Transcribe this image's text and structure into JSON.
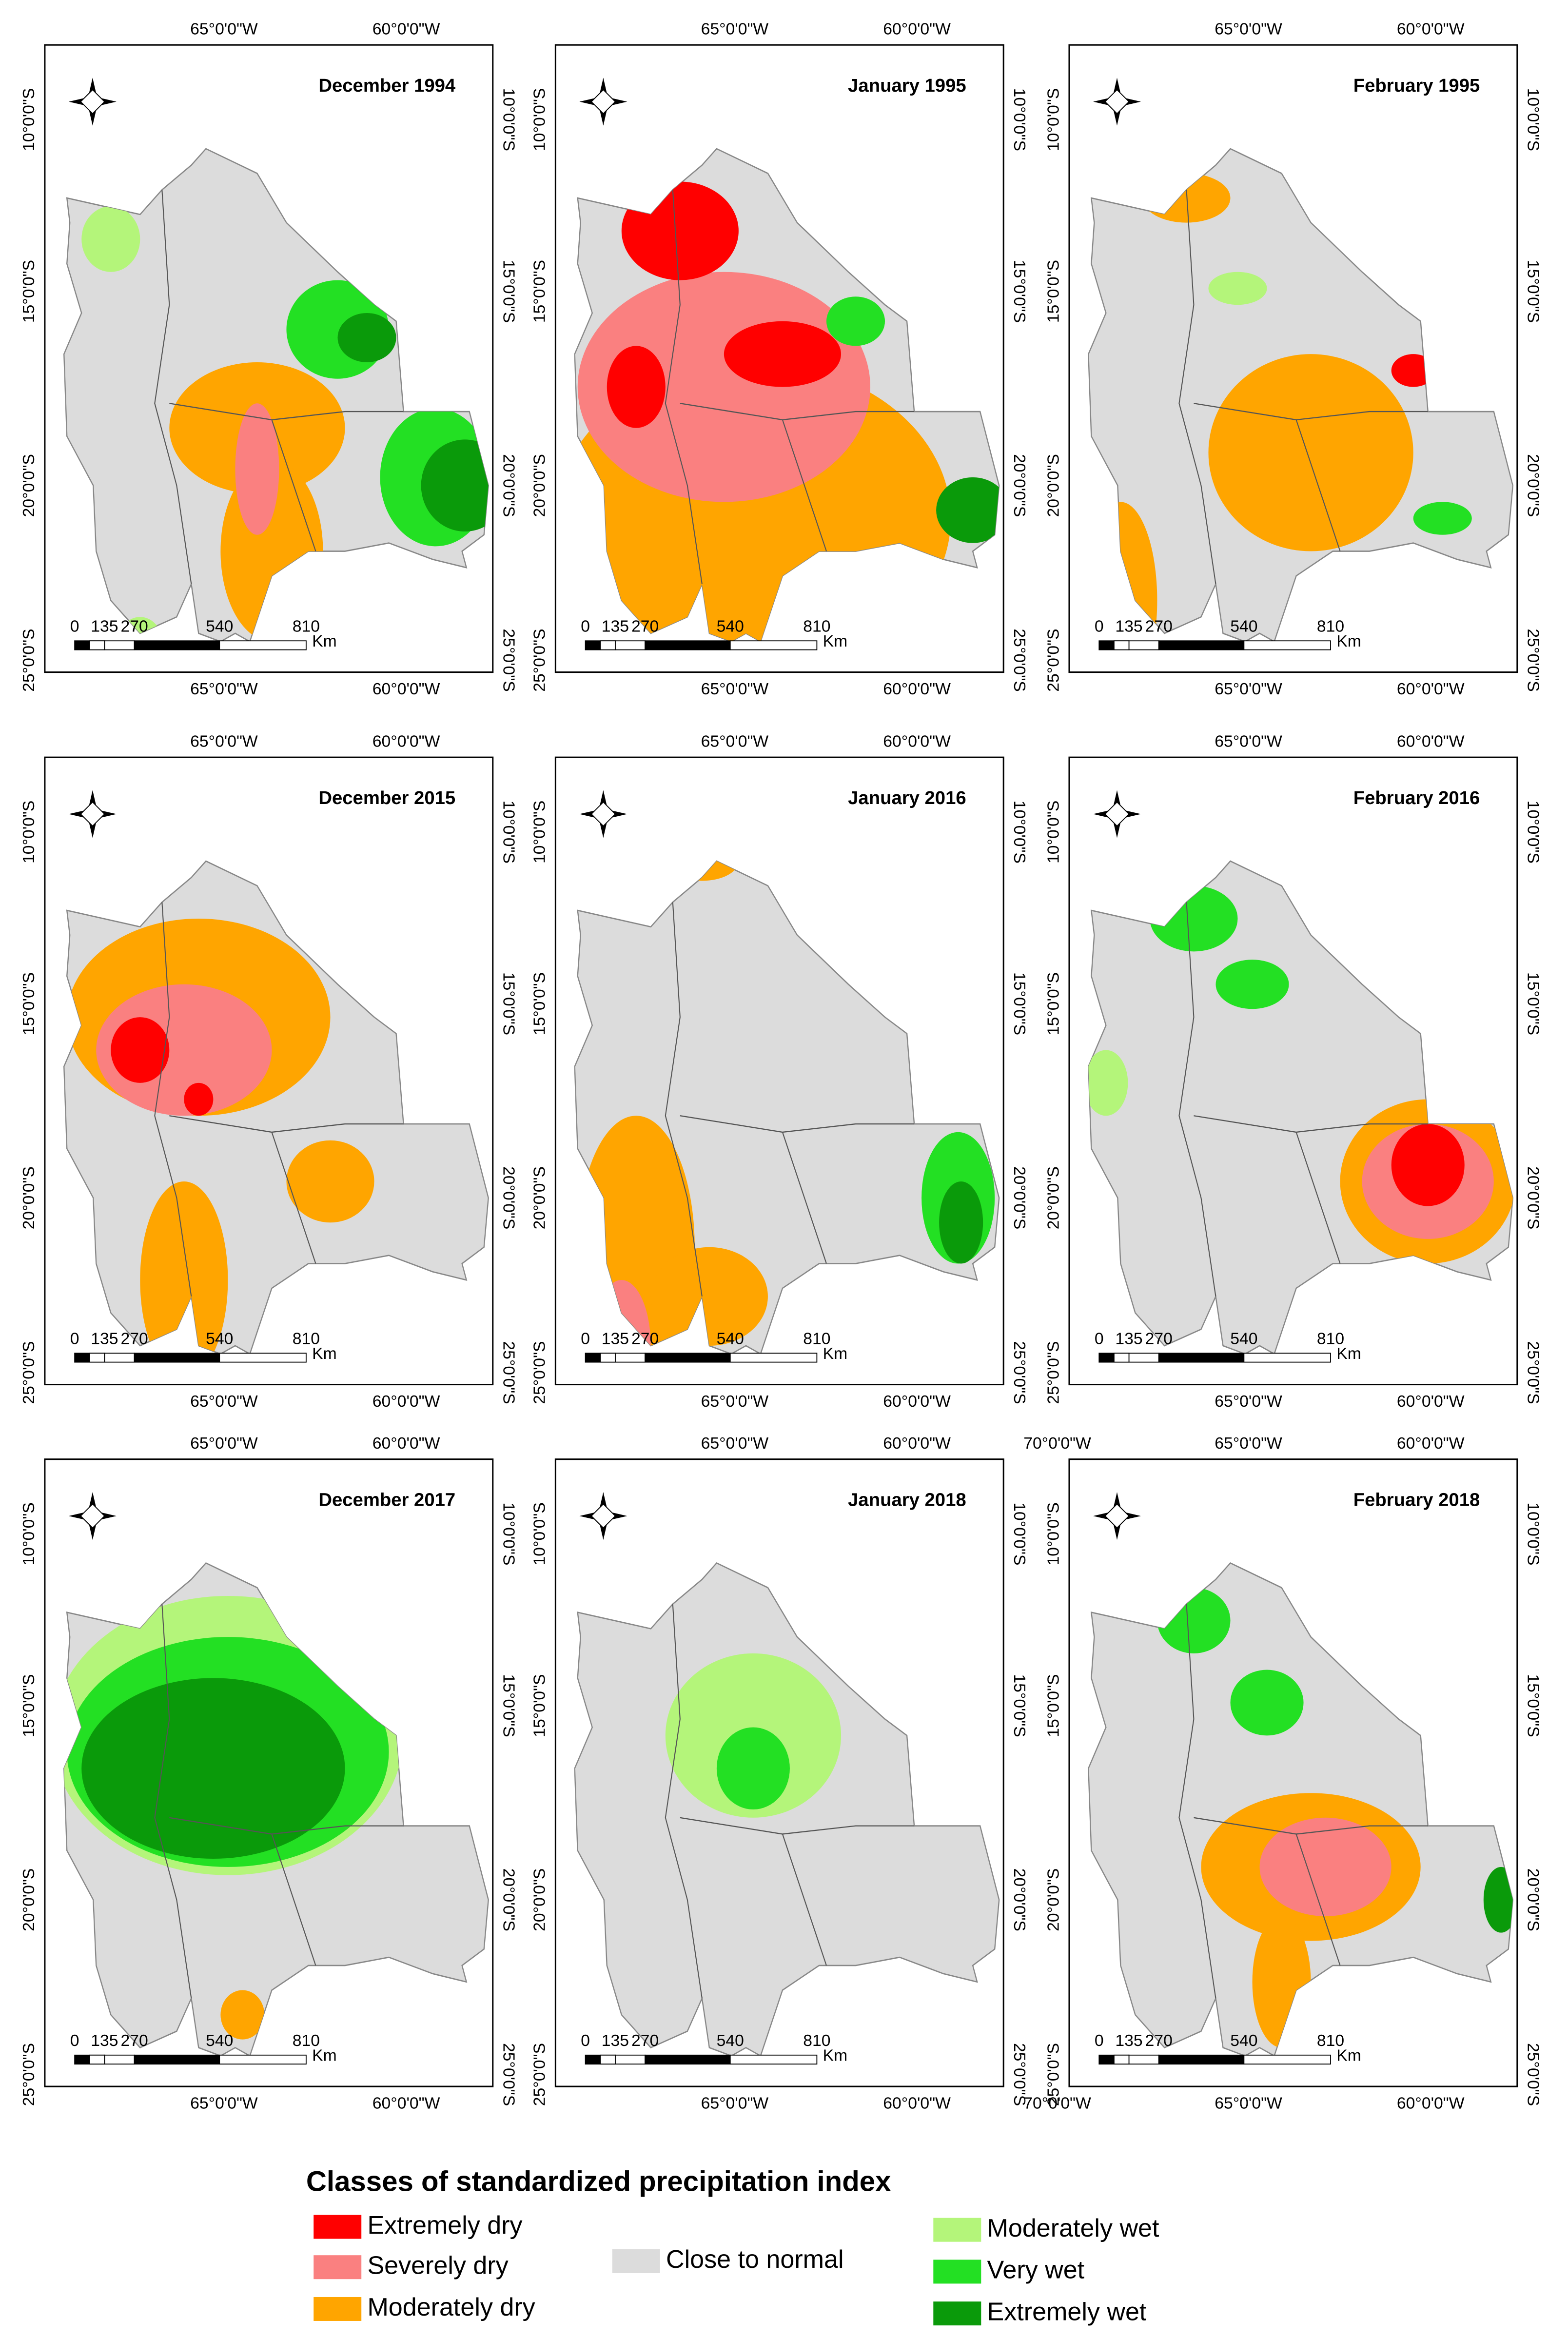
{
  "panels": [
    {
      "title": "December 1994",
      "top": [
        "65°0'0\"W",
        "60°0'0\"W"
      ],
      "bottom": [
        "65°0'0\"W",
        "60°0'0\"W"
      ],
      "left": [
        "10°0'0\"S",
        "15°0'0\"S",
        "20°0'0\"S",
        "25°0'0\"S"
      ],
      "right": [
        "10°0'0\"S",
        "15°0'0\"S",
        "20°0'0\"S",
        "25°0'0\"S"
      ],
      "scale": [
        "0",
        "135",
        "270",
        "540",
        "810"
      ],
      "unit": "Km"
    },
    {
      "title": "January 1995",
      "top": [
        "65°0'0\"W",
        "60°0'0\"W"
      ],
      "bottom": [
        "65°0'0\"W",
        "60°0'0\"W"
      ],
      "left": [
        "10°0'0\"S",
        "15°0'0\"S",
        "20°0'0\"S",
        "25°0'0\"S"
      ],
      "right": [
        "10°0'0\"S",
        "15°0'0\"S",
        "20°0'0\"S",
        "25°0'0\"S"
      ],
      "scale": [
        "0",
        "135",
        "270",
        "540",
        "810"
      ],
      "unit": "Km"
    },
    {
      "title": "February 1995",
      "top": [
        "65°0'0\"W",
        "60°0'0\"W"
      ],
      "bottom": [
        "65°0'0\"W",
        "60°0'0\"W"
      ],
      "left": [
        "10°0'0\"S",
        "15°0'0\"S",
        "20°0'0\"S",
        "25°0'0\"S"
      ],
      "right": [
        "10°0'0\"S",
        "15°0'0\"S",
        "20°0'0\"S",
        "25°0'0\"S"
      ],
      "scale": [
        "0",
        "135",
        "270",
        "540",
        "810"
      ],
      "unit": "Km"
    },
    {
      "title": "December 2015",
      "top": [
        "65°0'0\"W",
        "60°0'0\"W"
      ],
      "bottom": [
        "65°0'0\"W",
        "60°0'0\"W"
      ],
      "left": [
        "10°0'0\"S",
        "15°0'0\"S",
        "20°0'0\"S",
        "25°0'0\"S"
      ],
      "right": [
        "10°0'0\"S",
        "15°0'0\"S",
        "20°0'0\"S",
        "25°0'0\"S"
      ],
      "scale": [
        "0",
        "135",
        "270",
        "540",
        "810"
      ],
      "unit": "Km"
    },
    {
      "title": "January 2016",
      "top": [
        "65°0'0\"W",
        "60°0'0\"W"
      ],
      "bottom": [
        "65°0'0\"W",
        "60°0'0\"W"
      ],
      "left": [
        "10°0'0\"S",
        "15°0'0\"S",
        "20°0'0\"S",
        "25°0'0\"S"
      ],
      "right": [
        "10°0'0\"S",
        "15°0'0\"S",
        "20°0'0\"S",
        "25°0'0\"S"
      ],
      "scale": [
        "0",
        "135",
        "270",
        "540",
        "810"
      ],
      "unit": "Km"
    },
    {
      "title": "February 2016",
      "top": [
        "65°0'0\"W",
        "60°0'0\"W"
      ],
      "bottom": [
        "65°0'0\"W",
        "60°0'0\"W"
      ],
      "left": [
        "10°0'0\"S",
        "15°0'0\"S",
        "20°0'0\"S",
        "25°0'0\"S"
      ],
      "right": [
        "10°0'0\"S",
        "15°0'0\"S",
        "20°0'0\"S",
        "25°0'0\"S"
      ],
      "scale": [
        "0",
        "135",
        "270",
        "540",
        "810"
      ],
      "unit": "Km"
    },
    {
      "title": "December 2017",
      "top": [
        "65°0'0\"W",
        "60°0'0\"W"
      ],
      "bottom": [
        "65°0'0\"W",
        "60°0'0\"W"
      ],
      "left": [
        "10°0'0\"S",
        "15°0'0\"S",
        "20°0'0\"S",
        "25°0'0\"S"
      ],
      "right": [
        "10°0'0\"S",
        "15°0'0\"S",
        "20°0'0\"S",
        "25°0'0\"S"
      ],
      "scale": [
        "0",
        "135",
        "270",
        "540",
        "810"
      ],
      "unit": "Km"
    },
    {
      "title": "January 2018",
      "top": [
        "65°0'0\"W",
        "60°0'0\"W"
      ],
      "bottom": [
        "65°0'0\"W",
        "60°0'0\"W"
      ],
      "left": [
        "10°0'0\"S",
        "15°0'0\"S",
        "20°0'0\"S",
        "25°0'0\"S"
      ],
      "right": [
        "10°0'0\"S",
        "15°0'0\"S",
        "20°0'0\"S",
        "25°0'0\"S"
      ],
      "scale": [
        "0",
        "135",
        "270",
        "540",
        "810"
      ],
      "unit": "Km"
    },
    {
      "title": "February 2018",
      "top": [
        "70°0'0\"W",
        "65°0'0\"W",
        "60°0'0\"W"
      ],
      "bottom": [
        "70°0'0\"W",
        "65°0'0\"W",
        "60°0'0\"W"
      ],
      "left": [
        "10°0'0\"S",
        "15°0'0\"S",
        "20°0'0\"S",
        "25°0'0\"S"
      ],
      "right": [
        "10°0'0\"S",
        "15°0'0\"S",
        "20°0'0\"S",
        "25°0'0\"S"
      ],
      "scale": [
        "0",
        "135",
        "270",
        "540",
        "810"
      ],
      "unit": "Km"
    }
  ],
  "legend": {
    "title": "Classes of standardized precipitation index",
    "classes": [
      {
        "label": "Extremely dry",
        "color": "#ff0000"
      },
      {
        "label": "Severely dry",
        "color": "#fa8080"
      },
      {
        "label": "Moderately dry",
        "color": "#ffa500"
      },
      {
        "label": "Close to normal",
        "color": "#dcdcdc"
      },
      {
        "label": "Moderately wet",
        "color": "#b4f57a"
      },
      {
        "label": "Very wet",
        "color": "#23e023"
      },
      {
        "label": "Extremely wet",
        "color": "#0a9a0a"
      }
    ]
  }
}
